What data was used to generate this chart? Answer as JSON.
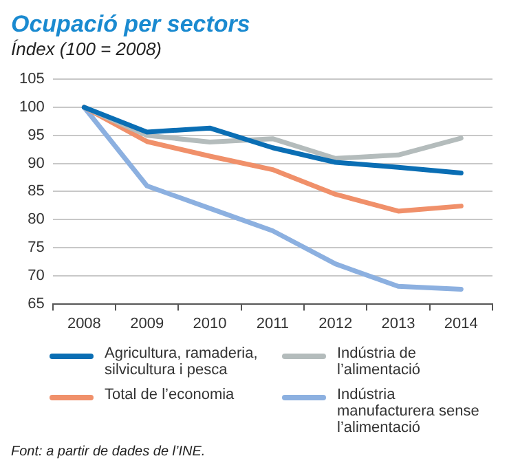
{
  "chart_data": {
    "type": "line",
    "title": "Ocupació per sectors",
    "subtitle": "Índex  (100 = 2008)",
    "categories": [
      "2008",
      "2009",
      "2010",
      "2011",
      "2012",
      "2013",
      "2014"
    ],
    "series": [
      {
        "name": "Agricultura, ramaderia, silvicultura i pesca",
        "color": "#0a6eb4",
        "values": [
          100,
          95.6,
          96.3,
          92.8,
          90.2,
          89.3,
          88.3
        ]
      },
      {
        "name": "Indústria de l’alimentació",
        "color": "#b4bcbc",
        "values": [
          100,
          95,
          93.8,
          94.4,
          90.9,
          91.5,
          94.5
        ]
      },
      {
        "name": "Total de l’economia",
        "color": "#f0906a",
        "values": [
          100,
          93.9,
          91.3,
          88.9,
          84.5,
          81.5,
          82.4
        ]
      },
      {
        "name": "Indústria manufacturera sense l’alimentació",
        "color": "#8cb0e0",
        "values": [
          100,
          86,
          82,
          78,
          72.1,
          68.1,
          67.6
        ]
      }
    ],
    "ylim": [
      65,
      105
    ],
    "yticks": [
      65,
      70,
      75,
      80,
      85,
      90,
      95,
      100,
      105
    ],
    "grid": "y",
    "legend": "bottom",
    "line_style": "solid",
    "annotations": [
      "Font: a partir de dades de l’INE."
    ]
  }
}
